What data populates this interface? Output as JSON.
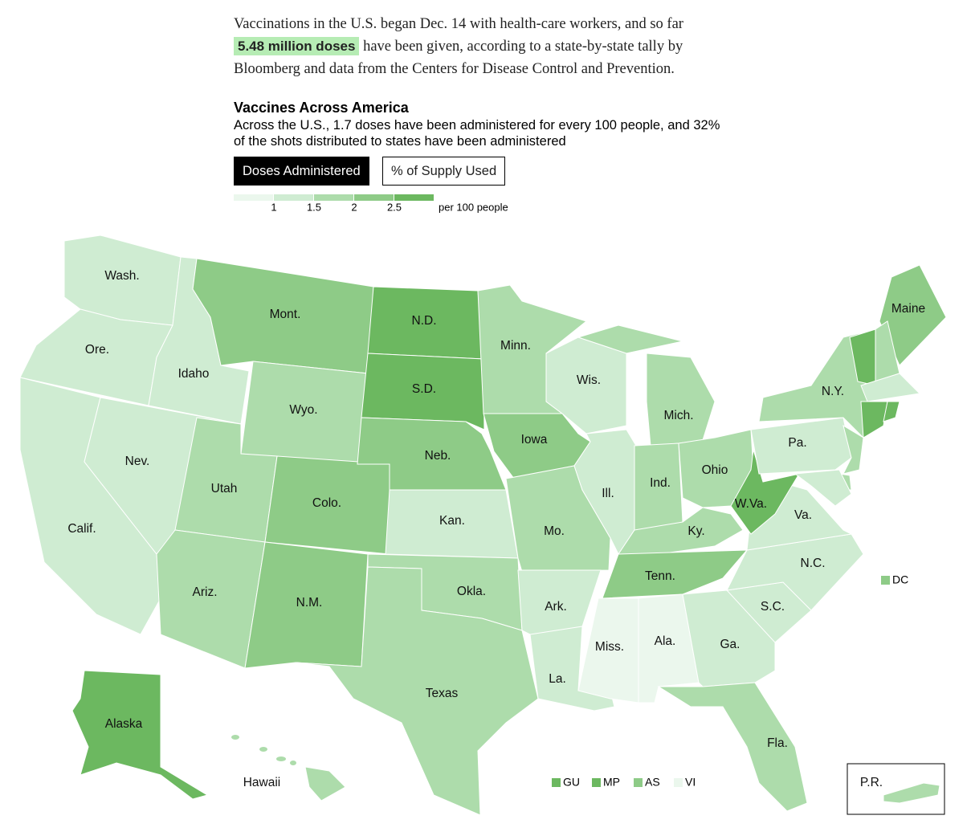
{
  "intro": {
    "before": "Vaccinations in the U.S. began Dec. 14 with health-care workers, and so far",
    "highlight": "5.48 million doses",
    "after": "have been given, according to a state-by-state tally by Bloomberg and data from the Centers for Disease Control and Prevention."
  },
  "title": "Vaccines Across America",
  "subtitle": "Across the U.S., 1.7 doses have been administered for every 100 people, and 32% of the shots distributed to states have been administered",
  "buttons": [
    "Doses Administered",
    "% of Supply Used"
  ],
  "legend": {
    "colors": [
      "#ebf7ed",
      "#cfecd2",
      "#addcab",
      "#8ecb87",
      "#6cb860"
    ],
    "ticks": [
      1,
      1.5,
      2,
      2.5
    ],
    "unit": "per 100 people"
  },
  "states": [
    {
      "label": "Wash.",
      "color": "#cfecd2"
    },
    {
      "label": "Ore.",
      "color": "#cfecd2"
    },
    {
      "label": "Calif.",
      "color": "#cfecd2"
    },
    {
      "label": "Idaho",
      "color": "#cfecd2"
    },
    {
      "label": "Nev.",
      "color": "#cfecd2"
    },
    {
      "label": "Mont.",
      "color": "#8ecb87"
    },
    {
      "label": "Wyo.",
      "color": "#addcab"
    },
    {
      "label": "Utah",
      "color": "#addcab"
    },
    {
      "label": "Colo.",
      "color": "#8ecb87"
    },
    {
      "label": "Ariz.",
      "color": "#addcab"
    },
    {
      "label": "N.M.",
      "color": "#8ecb87"
    },
    {
      "label": "N.D.",
      "color": "#6cb860"
    },
    {
      "label": "S.D.",
      "color": "#6cb860"
    },
    {
      "label": "Neb.",
      "color": "#8ecb87"
    },
    {
      "label": "Kan.",
      "color": "#cfecd2"
    },
    {
      "label": "Okla.",
      "color": "#addcab"
    },
    {
      "label": "Texas",
      "color": "#addcab"
    },
    {
      "label": "Minn.",
      "color": "#addcab"
    },
    {
      "label": "Iowa",
      "color": "#8ecb87"
    },
    {
      "label": "Mo.",
      "color": "#addcab"
    },
    {
      "label": "Ark.",
      "color": "#cfecd2"
    },
    {
      "label": "La.",
      "color": "#cfecd2"
    },
    {
      "label": "Wis.",
      "color": "#cfecd2"
    },
    {
      "label": "Ill.",
      "color": "#cfecd2"
    },
    {
      "label": "Mich.",
      "color": "#addcab"
    },
    {
      "label": "Ind.",
      "color": "#addcab"
    },
    {
      "label": "Ohio",
      "color": "#addcab"
    },
    {
      "label": "Ky.",
      "color": "#addcab"
    },
    {
      "label": "Tenn.",
      "color": "#8ecb87"
    },
    {
      "label": "Miss.",
      "color": "#ebf7ed"
    },
    {
      "label": "Ala.",
      "color": "#ebf7ed"
    },
    {
      "label": "Ga.",
      "color": "#cfecd2"
    },
    {
      "label": "Fla.",
      "color": "#addcab"
    },
    {
      "label": "S.C.",
      "color": "#cfecd2"
    },
    {
      "label": "N.C.",
      "color": "#cfecd2"
    },
    {
      "label": "Va.",
      "color": "#cfecd2"
    },
    {
      "label": "W.Va.",
      "color": "#6cb860"
    },
    {
      "label": "Pa.",
      "color": "#cfecd2"
    },
    {
      "label": "N.Y.",
      "color": "#addcab"
    },
    {
      "label": "Maine",
      "color": "#8ecb87"
    },
    {
      "label": "Alaska",
      "color": "#6cb860"
    },
    {
      "label": "Hawaii",
      "color": "#addcab"
    },
    {
      "label": null,
      "color": "#6cb860"
    },
    {
      "label": null,
      "color": "#addcab"
    },
    {
      "label": null,
      "color": "#cfecd2"
    },
    {
      "label": null,
      "color": "#6cb860"
    },
    {
      "label": null,
      "color": "#6cb860"
    },
    {
      "label": null,
      "color": "#addcab"
    },
    {
      "label": null,
      "color": "#addcab"
    },
    {
      "label": null,
      "color": "#cfecd2"
    }
  ],
  "territories": [
    {
      "label": "DC",
      "color": "#8ecb87"
    },
    {
      "label": "GU",
      "color": "#6cb860"
    },
    {
      "label": "MP",
      "color": "#6cb860"
    },
    {
      "label": "AS",
      "color": "#8ecb87"
    },
    {
      "label": "VI",
      "color": "#ebf7ed"
    }
  ],
  "puerto_rico": {
    "label": "P.R.",
    "color": "#addcab"
  }
}
